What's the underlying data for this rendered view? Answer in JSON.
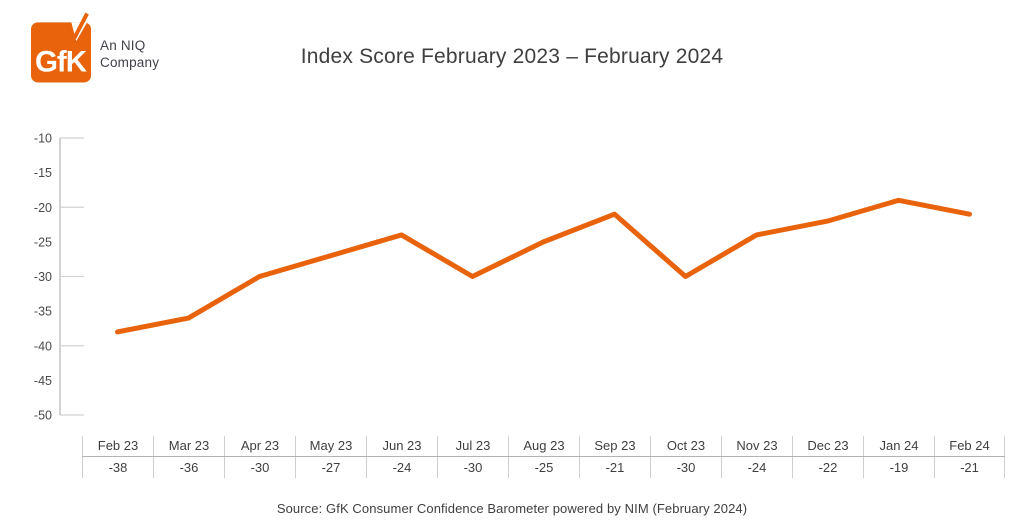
{
  "header": {
    "logo": {
      "text": "GfK",
      "sub_line1": "An NIQ",
      "sub_line2": "Company",
      "color": "#E8630C"
    },
    "title": "Index Score February 2023 – February 2024"
  },
  "chart_data": {
    "type": "line",
    "title": "Index Score February 2023 – February 2024",
    "categories": [
      "Feb 23",
      "Mar 23",
      "Apr 23",
      "May 23",
      "Jun 23",
      "Jul 23",
      "Aug 23",
      "Sep 23",
      "Oct 23",
      "Nov 23",
      "Dec 23",
      "Jan 24",
      "Feb 24"
    ],
    "values": [
      -38,
      -36,
      -30,
      -27,
      -24,
      -30,
      -25,
      -21,
      -30,
      -24,
      -22,
      -19,
      -21
    ],
    "xlabel": "",
    "ylabel": "",
    "ylim": [
      -50,
      -10
    ],
    "ytick_labels": [
      -10,
      -15,
      -20,
      -25,
      -30,
      -35,
      -40,
      -45,
      -50
    ],
    "ytick_major": [
      -10,
      -20,
      -30,
      -40,
      -50
    ],
    "line_color": "#E8630C",
    "grid": "off",
    "legend": "none"
  },
  "footer": {
    "source": "Source: GfK Consumer Confidence Barometer powered by NIM (February 2024)"
  },
  "colors": {
    "accent_orange": "#E8630C",
    "text_dark": "#3F3F3F",
    "axis_gray": "#C4C4C4"
  }
}
